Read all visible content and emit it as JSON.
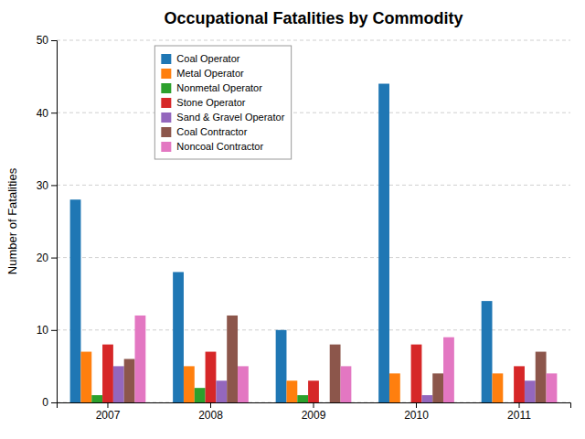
{
  "chart_data": {
    "type": "bar",
    "title": "Occupational Fatalities by Commodity",
    "ylabel": "Number of Fatalities",
    "categories": [
      "2007",
      "2008",
      "2009",
      "2010",
      "2011"
    ],
    "series": [
      {
        "name": "Coal Operator",
        "values": [
          28,
          18,
          10,
          44,
          14
        ]
      },
      {
        "name": "Metal Operator",
        "values": [
          7,
          5,
          3,
          4,
          4
        ]
      },
      {
        "name": "Nonmetal Operator",
        "values": [
          1,
          2,
          1,
          0,
          0
        ]
      },
      {
        "name": "Stone Operator",
        "values": [
          8,
          7,
          3,
          8,
          5
        ]
      },
      {
        "name": "Sand & Gravel Operator",
        "values": [
          5,
          3,
          0,
          1,
          3
        ]
      },
      {
        "name": "Coal Contractor",
        "values": [
          6,
          12,
          8,
          4,
          7
        ]
      },
      {
        "name": "Noncoal Contractor",
        "values": [
          12,
          5,
          5,
          9,
          4
        ]
      }
    ],
    "ylim": [
      0,
      50
    ],
    "yticks": [
      0,
      10,
      20,
      30,
      40,
      50
    ],
    "grid": true,
    "legend": "upper left"
  }
}
